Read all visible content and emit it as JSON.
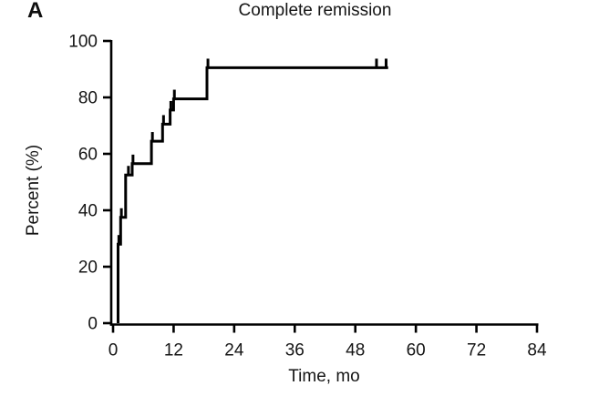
{
  "figure": {
    "panel_label": "A",
    "title": "Complete remission",
    "xlabel": "Time, mo",
    "ylabel": "Percent (%)"
  },
  "chart_data": {
    "type": "line",
    "subtype": "kaplan-meier-step",
    "title": "Complete remission",
    "xlabel": "Time, mo",
    "ylabel": "Percent (%)",
    "xlim": [
      0,
      84
    ],
    "ylim": [
      0,
      100
    ],
    "x_ticks": [
      0,
      12,
      24,
      36,
      48,
      60,
      72,
      84
    ],
    "y_ticks": [
      0,
      20,
      40,
      60,
      80,
      100
    ],
    "grid": false,
    "legend": "none",
    "line_color": "#000000",
    "axis_color": "#000000",
    "series": [
      {
        "name": "Complete remission",
        "style": "step",
        "points": [
          [
            1.0,
            0
          ],
          [
            1.0,
            28
          ],
          [
            1.5,
            28
          ],
          [
            1.5,
            37.5
          ],
          [
            2.5,
            37.5
          ],
          [
            2.5,
            52.5
          ],
          [
            3.8,
            52.5
          ],
          [
            3.8,
            56.5
          ],
          [
            7.6,
            56.5
          ],
          [
            7.6,
            64.5
          ],
          [
            9.8,
            64.5
          ],
          [
            9.8,
            70.5
          ],
          [
            11.3,
            70.5
          ],
          [
            11.3,
            75.5
          ],
          [
            12.0,
            75.5
          ],
          [
            12.0,
            79.5
          ],
          [
            18.6,
            79.5
          ],
          [
            18.6,
            90.5
          ],
          [
            54.5,
            90.5
          ]
        ],
        "censor_marks": [
          [
            1.15,
            28
          ],
          [
            1.65,
            37.5
          ],
          [
            3.05,
            52.5
          ],
          [
            3.95,
            56.5
          ],
          [
            7.8,
            64.5
          ],
          [
            10.0,
            70.5
          ],
          [
            11.45,
            75.5
          ],
          [
            12.15,
            79.5
          ],
          [
            18.8,
            90.5
          ],
          [
            52.2,
            90.5
          ],
          [
            54.1,
            90.5
          ]
        ],
        "plateau_percent": 90.5,
        "followup_end_mo": 54.5
      }
    ]
  }
}
